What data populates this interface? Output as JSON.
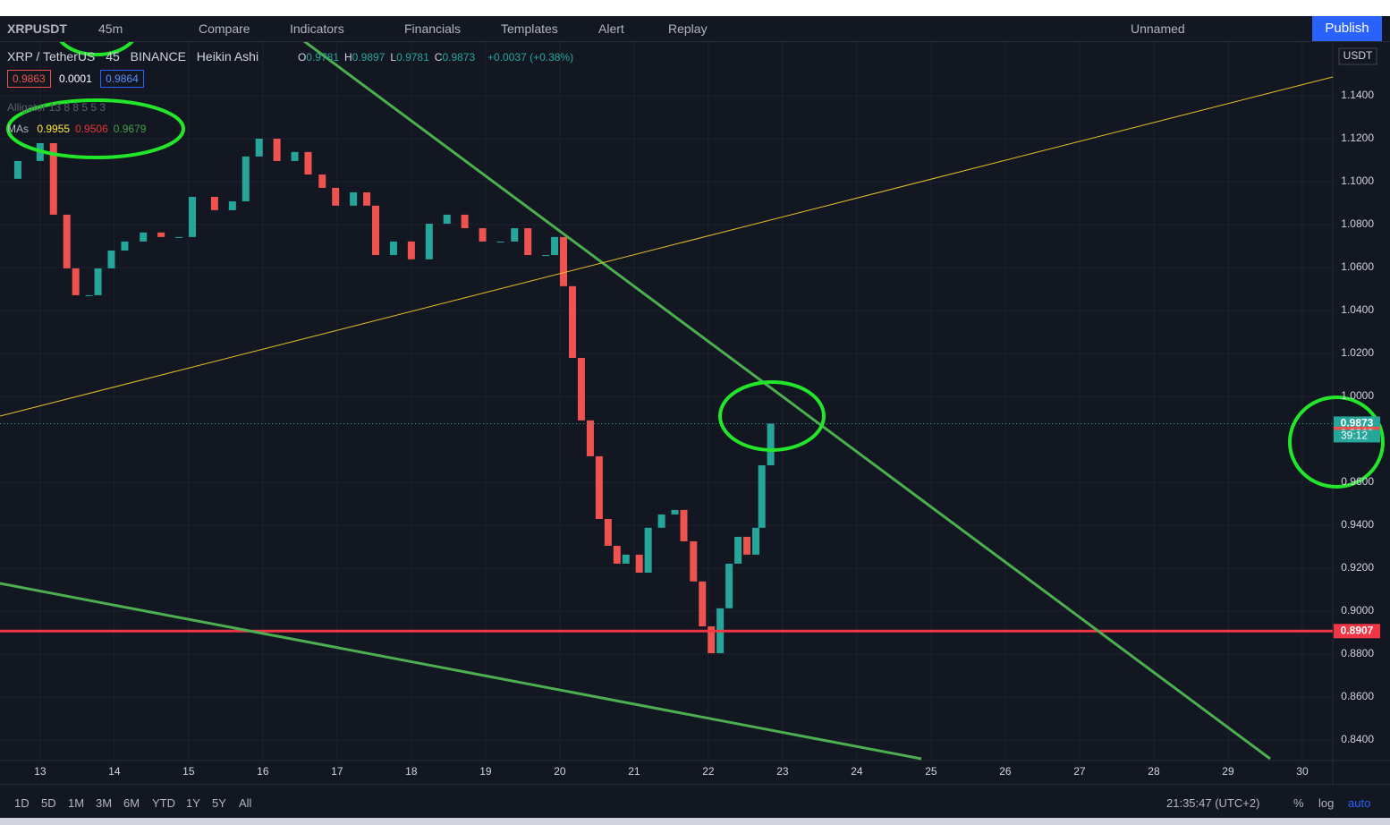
{
  "toolbar": {
    "symbol": "XRPUSDT",
    "interval": "45m",
    "buttons": [
      "Compare",
      "Indicators",
      "Financials",
      "Templates",
      "Alert",
      "Replay"
    ],
    "layout_name": "Unnamed",
    "publish": "Publish"
  },
  "legend": {
    "pair": "XRP / TetherUS",
    "interval": "45",
    "exchange": "BINANCE",
    "style": "Heikin Ashi",
    "ohlc": [
      [
        "O",
        "0.9781"
      ],
      [
        "H",
        "0.9897"
      ],
      [
        "L",
        "0.9781"
      ],
      [
        "C",
        "0.9873"
      ]
    ],
    "change": "+0.0037 (+0.38%)",
    "bid": "0.9863",
    "spread": "0.0001",
    "ask": "0.9864",
    "alligator": "Alligator",
    "alligator_params": "13 8 8 5 5 3",
    "mas": "MAs",
    "ma_values": [
      {
        "text": "0.9955",
        "color": "#ffeb3b"
      },
      {
        "text": "0.9506",
        "color": "#e53935"
      },
      {
        "text": "0.9679",
        "color": "#43a047"
      }
    ]
  },
  "currency": "USDT",
  "countdown": "39:12",
  "bottom": {
    "ranges": [
      "1D",
      "5D",
      "1M",
      "3M",
      "6M",
      "YTD",
      "1Y",
      "5Y",
      "All"
    ],
    "clock": "21:35:47 (UTC+2)",
    "options": [
      "%",
      "log",
      "auto"
    ]
  },
  "chart_data": {
    "type": "candlestick",
    "x": [
      12.46,
      12.7,
      13,
      13.18,
      13.36,
      13.48,
      13.66,
      13.78,
      13.96,
      14.14,
      14.39,
      14.63,
      14.87,
      15.05,
      15.35,
      15.59,
      15.77,
      15.95,
      16.19,
      16.43,
      16.61,
      16.8,
      16.98,
      17.22,
      17.4,
      17.52,
      17.76,
      18,
      18.24,
      18.48,
      18.72,
      18.96,
      19.2,
      19.39,
      19.57,
      19.81,
      19.93,
      20.05,
      20.17,
      20.29,
      20.41,
      20.53,
      20.65,
      20.77,
      20.89,
      21.07,
      21.19,
      21.37,
      21.55,
      21.67,
      21.8,
      21.92,
      22.04,
      22.16,
      22.28,
      22.4,
      22.52,
      22.64,
      22.72,
      22.84
    ],
    "values": [
      1.1013,
      1.1096,
      1.1179,
      1.0846,
      1.0596,
      1.0471,
      1.0471,
      1.0596,
      1.0679,
      1.0721,
      1.0763,
      1.0742,
      1.0742,
      1.0929,
      1.0867,
      1.0908,
      1.1117,
      1.12,
      1.1096,
      1.1138,
      1.1033,
      1.0971,
      1.0888,
      1.095,
      1.0888,
      1.0658,
      1.0721,
      1.0638,
      1.0804,
      1.0846,
      1.0783,
      1.0721,
      1.0721,
      1.0783,
      1.0658,
      1.0658,
      1.0742,
      1.0513,
      1.0179,
      0.9888,
      0.9721,
      0.9429,
      0.9304,
      0.9221,
      0.9263,
      0.9179,
      0.9388,
      0.945,
      0.9471,
      0.9325,
      0.9138,
      0.8929,
      0.8804,
      0.9013,
      0.9221,
      0.9346,
      0.9263,
      0.9388,
      0.9679,
      0.9873
    ],
    "up_color": "#26a69a",
    "down_color": "#ef5350",
    "xlim": [
      12.46,
      30.41
    ],
    "xticks": [
      13,
      14,
      15,
      16,
      17,
      18,
      19,
      20,
      21,
      22,
      23,
      24,
      25,
      26,
      27,
      28,
      29,
      30
    ],
    "ylim": [
      0.8304,
      1.1654
    ],
    "yticks": [
      {
        "value": 0.84,
        "label": "0.8400"
      },
      {
        "value": 0.86,
        "label": "0.8600"
      },
      {
        "value": 0.88,
        "label": "0.8800"
      },
      {
        "value": 0.9,
        "label": "0.9000"
      },
      {
        "value": 0.92,
        "label": "0.9200"
      },
      {
        "value": 0.94,
        "label": "0.9400"
      },
      {
        "value": 0.96,
        "label": "0.9600"
      },
      {
        "value": 1.0,
        "label": "1.0000"
      },
      {
        "value": 1.02,
        "label": "1.0200"
      },
      {
        "value": 1.04,
        "label": "1.0400"
      },
      {
        "value": 1.06,
        "label": "1.0600"
      },
      {
        "value": 1.08,
        "label": "1.0800"
      },
      {
        "value": 1.1,
        "label": "1.1000"
      },
      {
        "value": 1.12,
        "label": "1.1200"
      },
      {
        "value": 1.14,
        "label": "1.1400"
      }
    ],
    "grid": true,
    "markers": [
      {
        "value": 0.9873,
        "color": "#26a69a"
      },
      {
        "value": 0.9863,
        "color": "#ef5350"
      },
      {
        "value": 0.8907,
        "color": "#f23645"
      }
    ]
  }
}
